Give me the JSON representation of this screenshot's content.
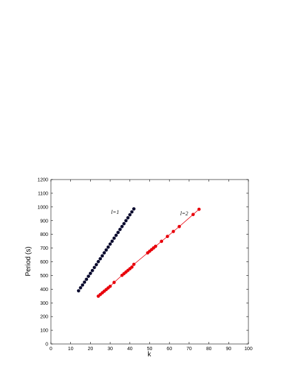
{
  "chart_data": {
    "type": "scatter",
    "title": "",
    "xlabel": "k",
    "ylabel": "Period (s)",
    "xlim": [
      0,
      100
    ],
    "ylim": [
      0,
      1200
    ],
    "x_ticks": [
      0,
      10,
      20,
      30,
      40,
      50,
      60,
      70,
      80,
      90,
      100
    ],
    "y_ticks": [
      0,
      100,
      200,
      300,
      400,
      500,
      600,
      700,
      800,
      900,
      1000,
      1100,
      1200
    ],
    "grid": false,
    "annotations": [
      {
        "text": "l=1",
        "x": 32.5,
        "y": 950
      },
      {
        "text": "l=2",
        "x": 67.5,
        "y": 940
      }
    ],
    "series": [
      {
        "color": "#0a0a2e",
        "line": false,
        "x": [
          14,
          15,
          16,
          17,
          18,
          19,
          20,
          21,
          22,
          23,
          24,
          25,
          26,
          27,
          28,
          29,
          30,
          31,
          32,
          33,
          34,
          35,
          36,
          37,
          38,
          39,
          40,
          41,
          42
        ],
        "y": [
          388,
          410,
          430,
          451,
          472,
          494,
          515,
          536,
          558,
          579,
          601,
          622,
          643,
          665,
          686,
          707,
          729,
          750,
          772,
          793,
          814,
          836,
          857,
          878,
          900,
          921,
          943,
          964,
          986
        ]
      },
      {
        "color": "#e8000b",
        "line": true,
        "x": [
          24,
          25,
          26,
          27,
          28,
          29,
          30,
          32,
          36,
          37,
          38,
          39,
          40,
          41,
          42,
          49,
          50,
          51,
          52,
          53,
          56,
          59,
          62,
          65,
          72,
          75
        ],
        "y": [
          349,
          361,
          373,
          385,
          397,
          409,
          421,
          449,
          501,
          513,
          525,
          537,
          549,
          561,
          581,
          665,
          677,
          689,
          701,
          713,
          749,
          785,
          821,
          857,
          945,
          983
        ]
      }
    ]
  }
}
